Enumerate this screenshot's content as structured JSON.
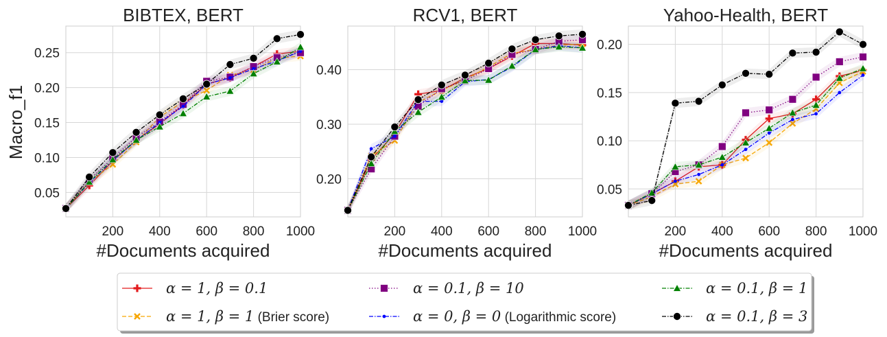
{
  "chart_data": {
    "type": "line",
    "style": {
      "grid": true,
      "legend_position": "bottom-center",
      "colors": {
        "a1_b01": "#e31a1c",
        "a1_b1": "#f7a600",
        "a01_b10": "#800080",
        "a0_b0": "#0000ff",
        "a01_b1": "#008000",
        "a01_b3": "#000000"
      }
    },
    "legend": [
      {
        "key": "a1_b01",
        "label": "α = 1, β = 0.1",
        "note": "",
        "marker": "plus",
        "dash": "solid"
      },
      {
        "key": "a1_b1",
        "label": "α = 1, β = 1",
        "note": "(Brier score)",
        "marker": "x",
        "dash": "dashed"
      },
      {
        "key": "a01_b10",
        "label": "α = 0.1, β = 10",
        "note": "",
        "marker": "square",
        "dash": "dotted"
      },
      {
        "key": "a0_b0",
        "label": "α = 0, β = 0",
        "note": "(Logarithmic score)",
        "marker": "dot",
        "dash": "dashdot"
      },
      {
        "key": "a01_b1",
        "label": "α = 0.1, β = 1",
        "note": "",
        "marker": "triangle",
        "dash": "dashdot"
      },
      {
        "key": "a01_b3",
        "label": "α = 0.1, β = 3",
        "note": "",
        "marker": "circle",
        "dash": "dashdot"
      }
    ],
    "panels": [
      {
        "title": "BIBTEX, BERT",
        "xlabel": "#Documents acquired",
        "ylabel": "Macro_f1",
        "xlim": [
          0,
          1000
        ],
        "ylim": [
          0.015,
          0.288
        ],
        "xticks": [
          200,
          400,
          600,
          800,
          1000
        ],
        "yticks": [
          0.05,
          0.1,
          0.15,
          0.2,
          0.25
        ],
        "ytick_labels": [
          "0.05",
          "0.10",
          "0.15",
          "0.20",
          "0.25"
        ],
        "x": [
          0,
          100,
          200,
          300,
          400,
          500,
          600,
          700,
          800,
          900,
          1000
        ],
        "series": [
          {
            "key": "a1_b01",
            "values": [
              0.027,
              0.06,
              0.095,
              0.125,
              0.148,
              0.175,
              0.205,
              0.214,
              0.23,
              0.248,
              0.252
            ]
          },
          {
            "key": "a1_b1",
            "values": [
              0.027,
              0.065,
              0.09,
              0.122,
              0.158,
              0.18,
              0.196,
              0.218,
              0.225,
              0.242,
              0.245
            ]
          },
          {
            "key": "a01_b10",
            "values": [
              0.027,
              0.068,
              0.099,
              0.129,
              0.151,
              0.176,
              0.209,
              0.215,
              0.23,
              0.243,
              0.25
            ]
          },
          {
            "key": "a0_b0",
            "values": [
              0.027,
              0.064,
              0.096,
              0.124,
              0.15,
              0.173,
              0.205,
              0.214,
              0.227,
              0.238,
              0.252
            ]
          },
          {
            "key": "a01_b1",
            "values": [
              0.027,
              0.065,
              0.097,
              0.125,
              0.144,
              0.163,
              0.187,
              0.195,
              0.22,
              0.237,
              0.258
            ]
          },
          {
            "key": "a01_b3",
            "values": [
              0.027,
              0.072,
              0.107,
              0.136,
              0.161,
              0.184,
              0.205,
              0.233,
              0.242,
              0.27,
              0.276
            ]
          }
        ]
      },
      {
        "title": "RCV1, BERT",
        "xlabel": "#Documents acquired",
        "ylabel": "",
        "xlim": [
          0,
          1000
        ],
        "ylim": [
          0.13,
          0.48
        ],
        "xticks": [
          200,
          400,
          600,
          800,
          1000
        ],
        "yticks": [
          0.2,
          0.3,
          0.4
        ],
        "ytick_labels": [
          "0.20",
          "0.30",
          "0.40"
        ],
        "x": [
          0,
          100,
          200,
          300,
          400,
          500,
          600,
          700,
          800,
          900,
          1000
        ],
        "series": [
          {
            "key": "a1_b01",
            "values": [
              0.142,
              0.235,
              0.283,
              0.355,
              0.362,
              0.385,
              0.402,
              0.425,
              0.448,
              0.448,
              0.445
            ]
          },
          {
            "key": "a1_b1",
            "values": [
              0.142,
              0.242,
              0.27,
              0.34,
              0.362,
              0.382,
              0.405,
              0.43,
              0.437,
              0.445,
              0.447
            ]
          },
          {
            "key": "a01_b10",
            "values": [
              0.142,
              0.218,
              0.278,
              0.333,
              0.365,
              0.38,
              0.402,
              0.428,
              0.437,
              0.452,
              0.455
            ]
          },
          {
            "key": "a0_b0",
            "values": [
              0.142,
              0.255,
              0.278,
              0.342,
              0.342,
              0.378,
              0.382,
              0.405,
              0.437,
              0.444,
              0.44
            ]
          },
          {
            "key": "a01_b1",
            "values": [
              0.142,
              0.228,
              0.287,
              0.322,
              0.35,
              0.38,
              0.381,
              0.407,
              0.437,
              0.442,
              0.44
            ]
          },
          {
            "key": "a01_b3",
            "values": [
              0.142,
              0.24,
              0.295,
              0.345,
              0.372,
              0.39,
              0.412,
              0.438,
              0.455,
              0.462,
              0.465
            ]
          }
        ]
      },
      {
        "title": "Yahoo-Health, BERT",
        "xlabel": "#Documents acquired",
        "ylabel": "",
        "xlim": [
          0,
          1000
        ],
        "ylim": [
          0.021,
          0.219
        ],
        "xticks": [
          200,
          400,
          600,
          800,
          1000
        ],
        "yticks": [
          0.05,
          0.1,
          0.15,
          0.2
        ],
        "ytick_labels": [
          "0.05",
          "0.10",
          "0.15",
          "0.20"
        ],
        "x": [
          0,
          100,
          200,
          300,
          400,
          500,
          600,
          700,
          800,
          900,
          1000
        ],
        "series": [
          {
            "key": "a1_b01",
            "values": [
              0.033,
              0.045,
              0.058,
              0.073,
              0.075,
              0.101,
              0.123,
              0.128,
              0.143,
              0.167,
              0.173
            ]
          },
          {
            "key": "a1_b1",
            "values": [
              0.033,
              0.042,
              0.055,
              0.058,
              0.075,
              0.082,
              0.098,
              0.118,
              0.133,
              0.16,
              0.172
            ]
          },
          {
            "key": "a01_b10",
            "values": [
              0.033,
              0.045,
              0.068,
              0.075,
              0.094,
              0.129,
              0.132,
              0.143,
              0.166,
              0.182,
              0.187
            ]
          },
          {
            "key": "a0_b0",
            "values": [
              0.033,
              0.045,
              0.058,
              0.065,
              0.075,
              0.091,
              0.108,
              0.122,
              0.128,
              0.15,
              0.168
            ]
          },
          {
            "key": "a01_b1",
            "values": [
              0.033,
              0.046,
              0.073,
              0.075,
              0.083,
              0.098,
              0.113,
              0.129,
              0.137,
              0.165,
              0.175
            ]
          },
          {
            "key": "a01_b3",
            "values": [
              0.033,
              0.038,
              0.139,
              0.141,
              0.158,
              0.17,
              0.169,
              0.191,
              0.192,
              0.213,
              0.2
            ]
          }
        ]
      }
    ]
  }
}
